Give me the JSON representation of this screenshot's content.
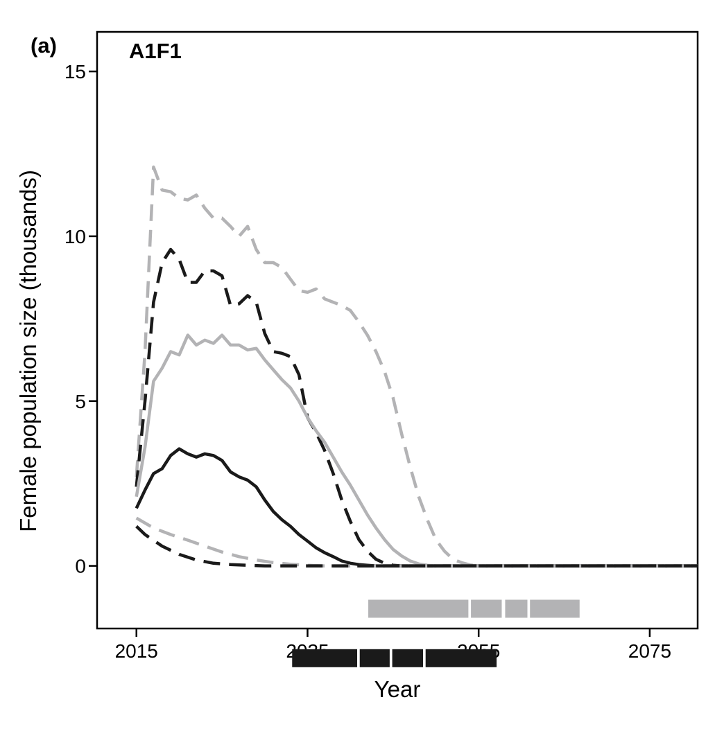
{
  "panel_label": "(a)",
  "chart_data": {
    "type": "line",
    "title": "A1F1",
    "xlabel": "Year",
    "ylabel": "Female population size (thousands)",
    "xlim": [
      2010.4,
      2080.6
    ],
    "ylim": [
      -1.9,
      16.2
    ],
    "xticks": [
      2015,
      2035,
      2055,
      2075
    ],
    "yticks": [
      0,
      5,
      10,
      15
    ],
    "xtick_labels": [
      "2015",
      "2035",
      "2055",
      "2075"
    ],
    "ytick_labels": [
      "0",
      "5",
      "10",
      "15"
    ],
    "grid": false,
    "legend": "none",
    "colors": {
      "black": "#1a1a1a",
      "grey": "#b3b3b5"
    },
    "series": [
      {
        "color": "#b3b3b5",
        "style": "dashed",
        "points": [
          [
            2015,
            2.7
          ],
          [
            2016,
            6.5
          ],
          [
            2017,
            12.1
          ],
          [
            2018,
            11.4
          ],
          [
            2019,
            11.35
          ],
          [
            2020,
            11.15
          ],
          [
            2021,
            11.1
          ],
          [
            2022,
            11.25
          ],
          [
            2023,
            10.85
          ],
          [
            2024,
            10.55
          ],
          [
            2025,
            10.55
          ],
          [
            2026,
            10.3
          ],
          [
            2027,
            10.0
          ],
          [
            2028,
            10.3
          ],
          [
            2029,
            9.6
          ],
          [
            2030,
            9.2
          ],
          [
            2031,
            9.2
          ],
          [
            2032,
            9.05
          ],
          [
            2033,
            8.7
          ],
          [
            2034,
            8.35
          ],
          [
            2035,
            8.3
          ],
          [
            2036,
            8.4
          ],
          [
            2037,
            8.1
          ],
          [
            2038,
            8.0
          ],
          [
            2039,
            7.9
          ],
          [
            2040,
            7.75
          ],
          [
            2041,
            7.4
          ],
          [
            2042,
            7.0
          ],
          [
            2043,
            6.5
          ],
          [
            2044,
            5.9
          ],
          [
            2045,
            5.1
          ],
          [
            2046,
            4.0
          ],
          [
            2047,
            3.0
          ],
          [
            2048,
            2.1
          ],
          [
            2049,
            1.4
          ],
          [
            2050,
            0.8
          ],
          [
            2051,
            0.45
          ],
          [
            2052,
            0.2
          ],
          [
            2053,
            0.1
          ],
          [
            2054,
            0.03
          ],
          [
            2055,
            0.0
          ],
          [
            2080.6,
            0.0
          ]
        ]
      },
      {
        "color": "#1a1a1a",
        "style": "dashed",
        "points": [
          [
            2015,
            2.4
          ],
          [
            2016,
            5.0
          ],
          [
            2017,
            8.0
          ],
          [
            2018,
            9.2
          ],
          [
            2019,
            9.6
          ],
          [
            2020,
            9.3
          ],
          [
            2021,
            8.6
          ],
          [
            2022,
            8.6
          ],
          [
            2023,
            8.95
          ],
          [
            2024,
            8.95
          ],
          [
            2025,
            8.8
          ],
          [
            2026,
            7.9
          ],
          [
            2027,
            7.95
          ],
          [
            2028,
            8.2
          ],
          [
            2029,
            8.0
          ],
          [
            2030,
            7.05
          ],
          [
            2031,
            6.5
          ],
          [
            2032,
            6.45
          ],
          [
            2033,
            6.35
          ],
          [
            2034,
            5.8
          ],
          [
            2035,
            4.5
          ],
          [
            2036,
            4.05
          ],
          [
            2037,
            3.5
          ],
          [
            2038,
            2.8
          ],
          [
            2039,
            2.0
          ],
          [
            2040,
            1.35
          ],
          [
            2041,
            0.8
          ],
          [
            2042,
            0.45
          ],
          [
            2043,
            0.2
          ],
          [
            2044,
            0.08
          ],
          [
            2045,
            0.02
          ],
          [
            2046,
            0.0
          ],
          [
            2080.6,
            0.0
          ]
        ]
      },
      {
        "color": "#b3b3b5",
        "style": "solid",
        "points": [
          [
            2015,
            2.1
          ],
          [
            2016,
            3.6
          ],
          [
            2017,
            5.6
          ],
          [
            2018,
            6.0
          ],
          [
            2019,
            6.5
          ],
          [
            2020,
            6.4
          ],
          [
            2021,
            7.0
          ],
          [
            2022,
            6.7
          ],
          [
            2023,
            6.85
          ],
          [
            2024,
            6.75
          ],
          [
            2025,
            7.0
          ],
          [
            2026,
            6.7
          ],
          [
            2027,
            6.7
          ],
          [
            2028,
            6.55
          ],
          [
            2029,
            6.6
          ],
          [
            2030,
            6.25
          ],
          [
            2031,
            5.95
          ],
          [
            2032,
            5.65
          ],
          [
            2033,
            5.4
          ],
          [
            2034,
            5.0
          ],
          [
            2035,
            4.5
          ],
          [
            2036,
            4.1
          ],
          [
            2037,
            3.75
          ],
          [
            2038,
            3.3
          ],
          [
            2039,
            2.85
          ],
          [
            2040,
            2.45
          ],
          [
            2041,
            2.0
          ],
          [
            2042,
            1.55
          ],
          [
            2043,
            1.15
          ],
          [
            2044,
            0.8
          ],
          [
            2045,
            0.5
          ],
          [
            2046,
            0.3
          ],
          [
            2047,
            0.15
          ],
          [
            2048,
            0.06
          ],
          [
            2049,
            0.02
          ],
          [
            2050,
            0.0
          ],
          [
            2080.6,
            0.0
          ]
        ]
      },
      {
        "color": "#1a1a1a",
        "style": "solid",
        "points": [
          [
            2015,
            1.75
          ],
          [
            2016,
            2.3
          ],
          [
            2017,
            2.8
          ],
          [
            2018,
            2.95
          ],
          [
            2019,
            3.35
          ],
          [
            2020,
            3.55
          ],
          [
            2021,
            3.4
          ],
          [
            2022,
            3.3
          ],
          [
            2023,
            3.4
          ],
          [
            2024,
            3.35
          ],
          [
            2025,
            3.2
          ],
          [
            2026,
            2.85
          ],
          [
            2027,
            2.7
          ],
          [
            2028,
            2.6
          ],
          [
            2029,
            2.4
          ],
          [
            2030,
            2.0
          ],
          [
            2031,
            1.65
          ],
          [
            2032,
            1.4
          ],
          [
            2033,
            1.2
          ],
          [
            2034,
            0.95
          ],
          [
            2035,
            0.75
          ],
          [
            2036,
            0.55
          ],
          [
            2037,
            0.4
          ],
          [
            2038,
            0.28
          ],
          [
            2039,
            0.15
          ],
          [
            2040,
            0.08
          ],
          [
            2041,
            0.04
          ],
          [
            2042,
            0.02
          ],
          [
            2043,
            0.0
          ],
          [
            2080.6,
            0.0
          ]
        ]
      },
      {
        "color": "#b3b3b5",
        "style": "dashed",
        "points": [
          [
            2015,
            1.45
          ],
          [
            2017,
            1.15
          ],
          [
            2019,
            0.95
          ],
          [
            2021,
            0.78
          ],
          [
            2023,
            0.6
          ],
          [
            2025,
            0.42
          ],
          [
            2027,
            0.28
          ],
          [
            2029,
            0.18
          ],
          [
            2031,
            0.1
          ],
          [
            2033,
            0.05
          ],
          [
            2035,
            0.02
          ],
          [
            2037,
            0.0
          ],
          [
            2080.6,
            0.0
          ]
        ]
      },
      {
        "color": "#1a1a1a",
        "style": "dashed",
        "points": [
          [
            2015,
            1.2
          ],
          [
            2016,
            0.95
          ],
          [
            2018,
            0.6
          ],
          [
            2020,
            0.35
          ],
          [
            2022,
            0.18
          ],
          [
            2024,
            0.08
          ],
          [
            2026,
            0.04
          ],
          [
            2028,
            0.02
          ],
          [
            2030,
            0.0
          ],
          [
            2080.6,
            0.0
          ]
        ]
      }
    ],
    "bars": [
      {
        "color": "#b3b3b5",
        "y": -1.3,
        "segments": [
          [
            2042.1,
            2053.8
          ],
          [
            2054.1,
            2057.7
          ],
          [
            2058.1,
            2060.7
          ],
          [
            2061.0,
            2066.8
          ]
        ]
      },
      {
        "color": "#1a1a1a",
        "y": -2.8,
        "segments": [
          [
            2033.2,
            2040.8
          ],
          [
            2041.1,
            2044.6
          ],
          [
            2044.9,
            2048.5
          ],
          [
            2048.8,
            2057.1
          ]
        ]
      }
    ]
  }
}
